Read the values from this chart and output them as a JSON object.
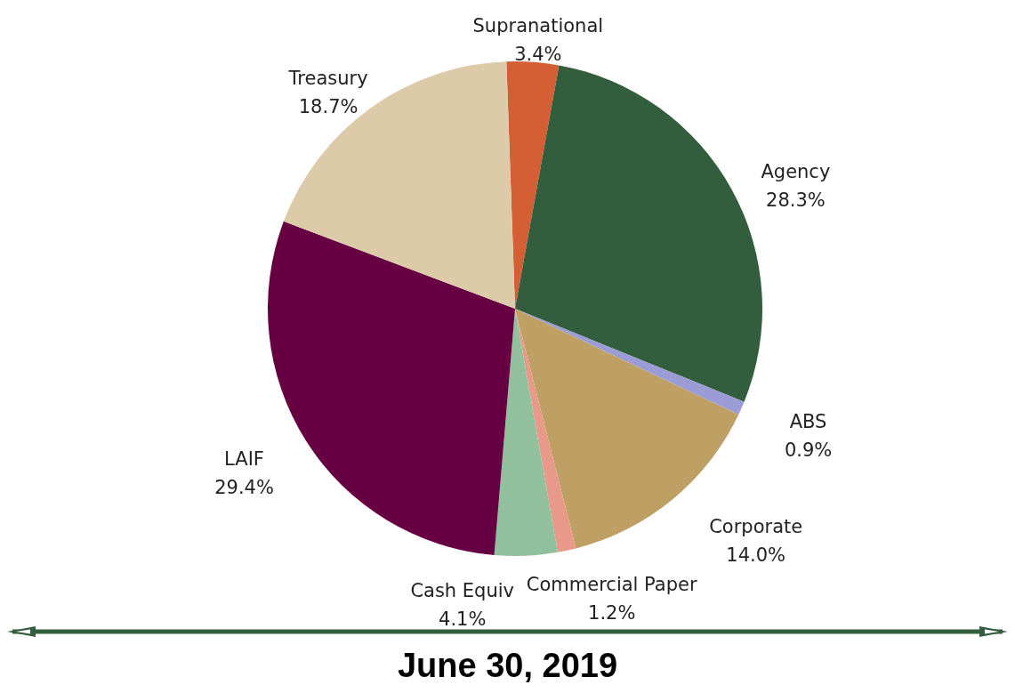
{
  "chart_data": {
    "type": "pie",
    "title": "June 30, 2019",
    "categories": [
      "Supranational",
      "Agency",
      "ABS",
      "Corporate",
      "Commercial Paper",
      "Cash Equiv",
      "LAIF",
      "Treasury"
    ],
    "values": [
      3.4,
      28.3,
      0.9,
      14.0,
      1.2,
      4.1,
      29.4,
      18.7
    ],
    "value_labels": [
      "3.4%",
      "28.3%",
      "0.9%",
      "14.0%",
      "1.2%",
      "4.1%",
      "29.4%",
      "18.7%"
    ],
    "colors": [
      "#d45f35",
      "#335e3d",
      "#9b9bd6",
      "#bea064",
      "#e8998a",
      "#93c09c",
      "#660042",
      "#dccaa8"
    ]
  }
}
